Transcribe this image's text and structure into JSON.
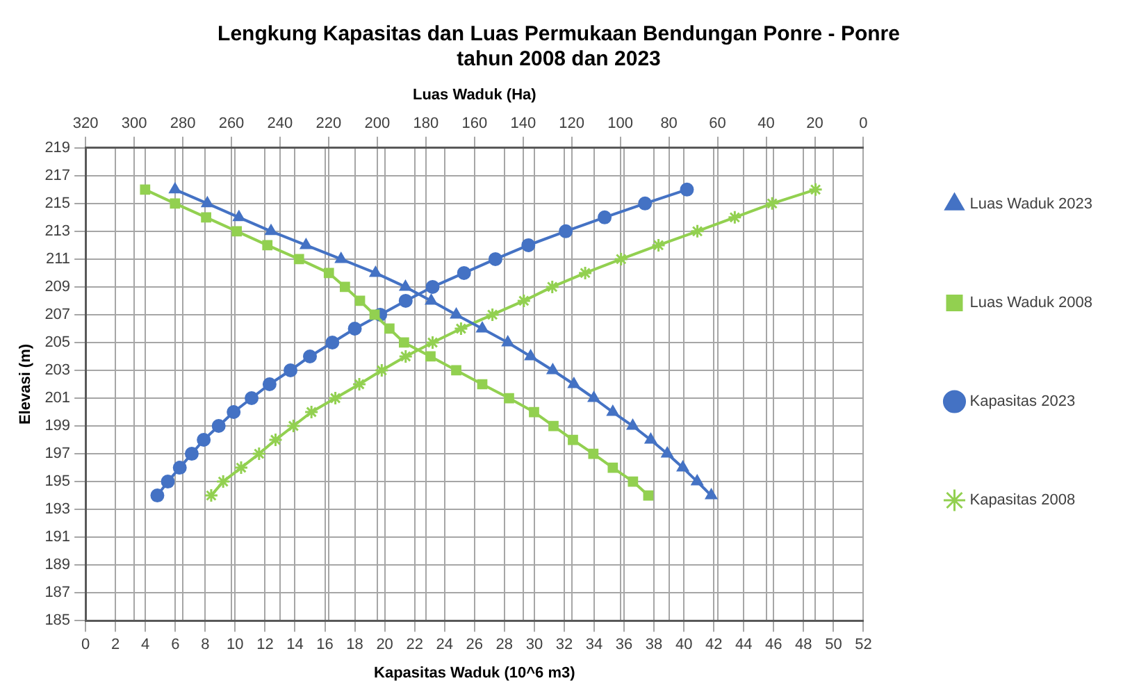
{
  "chart_data": {
    "type": "line",
    "title": "Lengkung Kapasitas dan Luas Permukaan Bendungan Ponre - Ponre\ntahun 2008 dan 2023",
    "xlabel": "Kapasitas Waduk (10^6 m3)",
    "x2label": "Luas Waduk (Ha)",
    "ylabel": "Elevasi (m)",
    "xlim": [
      0,
      52
    ],
    "xticks": [
      0,
      2,
      4,
      6,
      8,
      10,
      12,
      14,
      16,
      18,
      20,
      22,
      24,
      26,
      28,
      30,
      32,
      34,
      36,
      38,
      40,
      42,
      44,
      46,
      48,
      50,
      52
    ],
    "x2lim": [
      320,
      0
    ],
    "x2ticks": [
      320,
      300,
      280,
      260,
      240,
      220,
      200,
      180,
      160,
      140,
      120,
      100,
      80,
      60,
      40,
      20,
      0
    ],
    "ylim": [
      185,
      219
    ],
    "yticks": [
      185,
      187,
      189,
      191,
      193,
      195,
      197,
      199,
      201,
      203,
      205,
      207,
      209,
      211,
      213,
      215,
      217,
      219
    ],
    "grid": true,
    "legend": "right",
    "line_style": "solid",
    "series": [
      {
        "name": "Kapasitas 2008",
        "color": "#92d050",
        "marker": "cross",
        "x": [
          8.4,
          9.2,
          10.4,
          11.6,
          12.7,
          13.9,
          15.1,
          16.7,
          18.3,
          19.8,
          21.4,
          23.2,
          25.1,
          27.2,
          29.3,
          31.2,
          33.4,
          35.8,
          38.3,
          40.9,
          43.4,
          45.9,
          48.8
        ],
        "values": [
          194,
          195,
          196,
          197,
          198,
          199,
          200,
          201,
          202,
          203,
          204,
          205,
          206,
          207,
          208,
          209,
          210,
          211,
          212,
          213,
          214,
          215,
          216
        ]
      },
      {
        "name": "Kapasitas 2023",
        "color": "#4472c4",
        "marker": "circle",
        "x": [
          4.8,
          5.5,
          6.3,
          7.1,
          7.9,
          8.9,
          9.9,
          11.1,
          12.3,
          13.7,
          15.0,
          16.5,
          18.0,
          19.7,
          21.4,
          23.2,
          25.3,
          27.4,
          29.6,
          32.1,
          34.7,
          37.4,
          40.2
        ],
        "values": [
          194,
          195,
          196,
          197,
          198,
          199,
          200,
          201,
          202,
          203,
          204,
          205,
          206,
          207,
          208,
          209,
          210,
          211,
          212,
          213,
          214,
          215,
          216
        ]
      },
      {
        "name": "Luas Waduk 2008",
        "color": "#92d050",
        "marker": "square",
        "axis": "x2",
        "x": [
          88.5,
          94.8,
          103.1,
          111.1,
          119.5,
          127.5,
          135.5,
          145.8,
          156.8,
          167.5,
          178.1,
          189.0,
          195.0,
          201.1,
          207.1,
          213.3,
          219.9,
          232.2,
          245.2,
          257.8,
          270.4,
          283.2,
          295.5
        ],
        "values": [
          194,
          195,
          196,
          197,
          198,
          199,
          200,
          201,
          202,
          203,
          204,
          205,
          206,
          207,
          208,
          209,
          210,
          211,
          212,
          213,
          214,
          215,
          216
        ]
      },
      {
        "name": "Luas Waduk 2023",
        "color": "#4472c4",
        "marker": "triangle",
        "axis": "x2",
        "x": [
          62.6,
          68.4,
          74.3,
          80.7,
          87.5,
          94.9,
          103.1,
          110.9,
          119.1,
          127.8,
          136.9,
          146.3,
          156.8,
          167.5,
          177.8,
          188.4,
          200.7,
          214.9,
          229.3,
          243.7,
          256.9,
          269.9,
          283.2
        ],
        "values": [
          194,
          195,
          196,
          197,
          198,
          199,
          200,
          201,
          202,
          203,
          204,
          205,
          206,
          207,
          208,
          209,
          210,
          211,
          212,
          213,
          214,
          215,
          216
        ]
      }
    ]
  }
}
